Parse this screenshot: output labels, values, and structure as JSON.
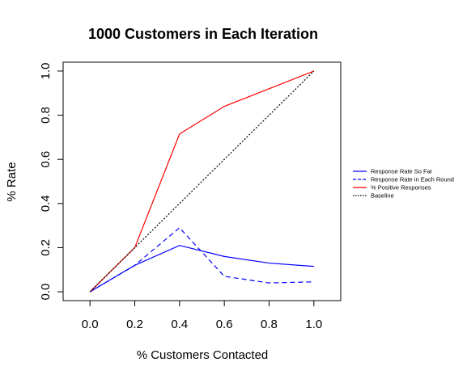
{
  "chart_data": {
    "type": "line",
    "title": "1000 Customers in Each Iteration",
    "xlabel": "% Customers Contacted",
    "ylabel": "% Rate",
    "xlim": [
      -0.12,
      1.12
    ],
    "ylim": [
      -0.04,
      1.04
    ],
    "x_ticks": [
      "0.0",
      "0.2",
      "0.4",
      "0.6",
      "0.8",
      "1.0"
    ],
    "y_ticks": [
      "0.0",
      "0.2",
      "0.4",
      "0.6",
      "0.8",
      "1.0"
    ],
    "grid": false,
    "legend_position": "right",
    "series": [
      {
        "name": "Response Rate So Far",
        "color": "#0000ff",
        "dash": "solid",
        "x": [
          0.0,
          0.2,
          0.4,
          0.6,
          0.8,
          1.0
        ],
        "y": [
          0.0,
          0.12,
          0.21,
          0.16,
          0.13,
          0.115
        ]
      },
      {
        "name": "Response Rate in Each Round",
        "color": "#0000ff",
        "dash": "dashed",
        "x": [
          0.0,
          0.2,
          0.4,
          0.6,
          0.8,
          1.0
        ],
        "y": [
          0.0,
          0.12,
          0.29,
          0.07,
          0.04,
          0.045
        ]
      },
      {
        "name": "% Positive Responses",
        "color": "#ff0000",
        "dash": "solid",
        "x": [
          0.0,
          0.2,
          0.4,
          0.6,
          0.8,
          1.0
        ],
        "y": [
          0.0,
          0.2,
          0.715,
          0.84,
          0.92,
          1.0
        ]
      },
      {
        "name": "Baseline",
        "color": "#000000",
        "dash": "dotted",
        "x": [
          0.0,
          1.0
        ],
        "y": [
          0.0,
          1.0
        ]
      }
    ]
  }
}
